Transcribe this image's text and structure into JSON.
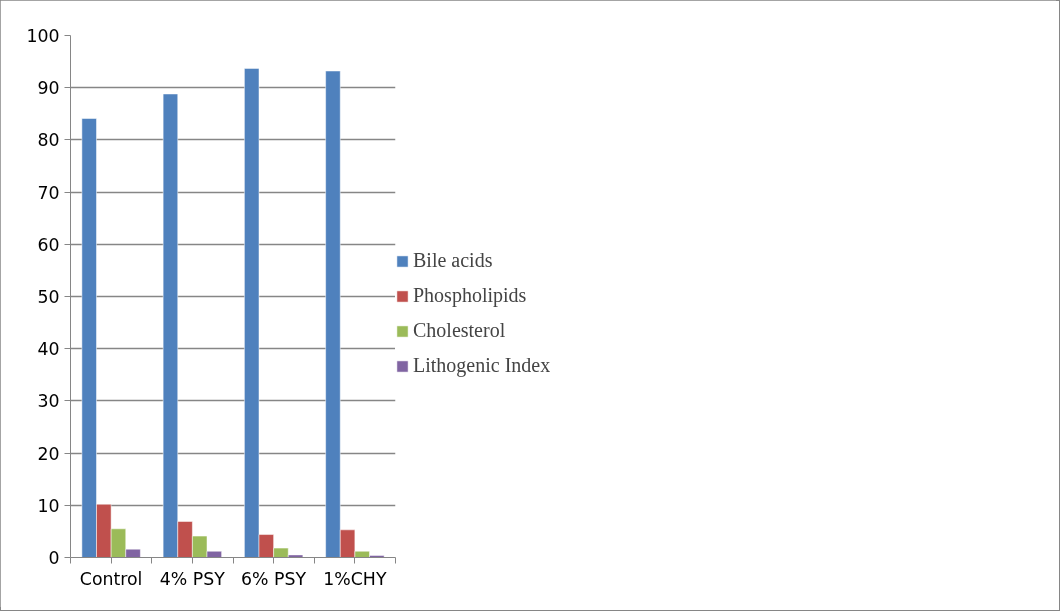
{
  "chart_data": {
    "type": "bar",
    "categories": [
      "Control",
      "4% PSY",
      "6% PSY",
      "1%CHY"
    ],
    "series": [
      {
        "name": "Bile acids",
        "color": "#4f81bd",
        "values": [
          84.1,
          88.8,
          93.7,
          93.2
        ]
      },
      {
        "name": "Phospholipids",
        "color": "#c0504d",
        "values": [
          10.2,
          6.9,
          4.4,
          5.3
        ]
      },
      {
        "name": "Cholesterol",
        "color": "#9bbb59",
        "values": [
          5.5,
          4.1,
          1.8,
          1.2
        ]
      },
      {
        "name": "Lithogenic Index",
        "color": "#8064a2",
        "values": [
          1.6,
          1.2,
          0.5,
          0.4
        ]
      }
    ],
    "ylim": [
      0,
      100
    ],
    "yticks": [
      0,
      10,
      20,
      30,
      40,
      50,
      60,
      70,
      80,
      90,
      100
    ],
    "grid": "y",
    "legend": "right"
  }
}
